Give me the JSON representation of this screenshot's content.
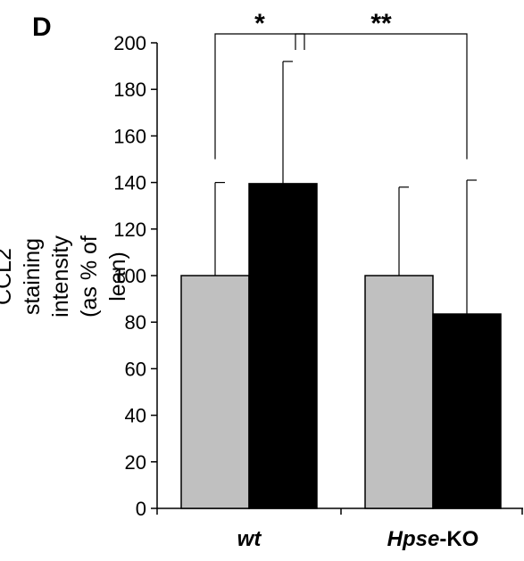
{
  "panel_label": "D",
  "chart_data": {
    "type": "bar",
    "ylabel": "CCL2 staining intensity\n(as % of lean)",
    "ylim": [
      0,
      200
    ],
    "yticks": [
      0,
      20,
      40,
      60,
      80,
      100,
      120,
      140,
      160,
      180,
      200
    ],
    "categories": [
      {
        "label": "wt",
        "italic_part": "wt",
        "plain_part": ""
      },
      {
        "label": "Hpse-KO",
        "italic_part": "Hpse",
        "plain_part": "-KO"
      }
    ],
    "series": [
      {
        "color": "#c0c0c0",
        "values": [
          100,
          100
        ],
        "error_upper": [
          140,
          138
        ]
      },
      {
        "color": "#000000",
        "values": [
          139.5,
          83.5
        ],
        "error_upper": [
          192,
          141
        ]
      }
    ],
    "significance": [
      {
        "label": "*",
        "from": {
          "category": 0,
          "series": 0
        },
        "to": {
          "category": 0,
          "series": 1
        }
      },
      {
        "label": "**",
        "from": {
          "category": 0,
          "series": 1
        },
        "to": {
          "category": 1,
          "series": 1
        }
      }
    ]
  }
}
